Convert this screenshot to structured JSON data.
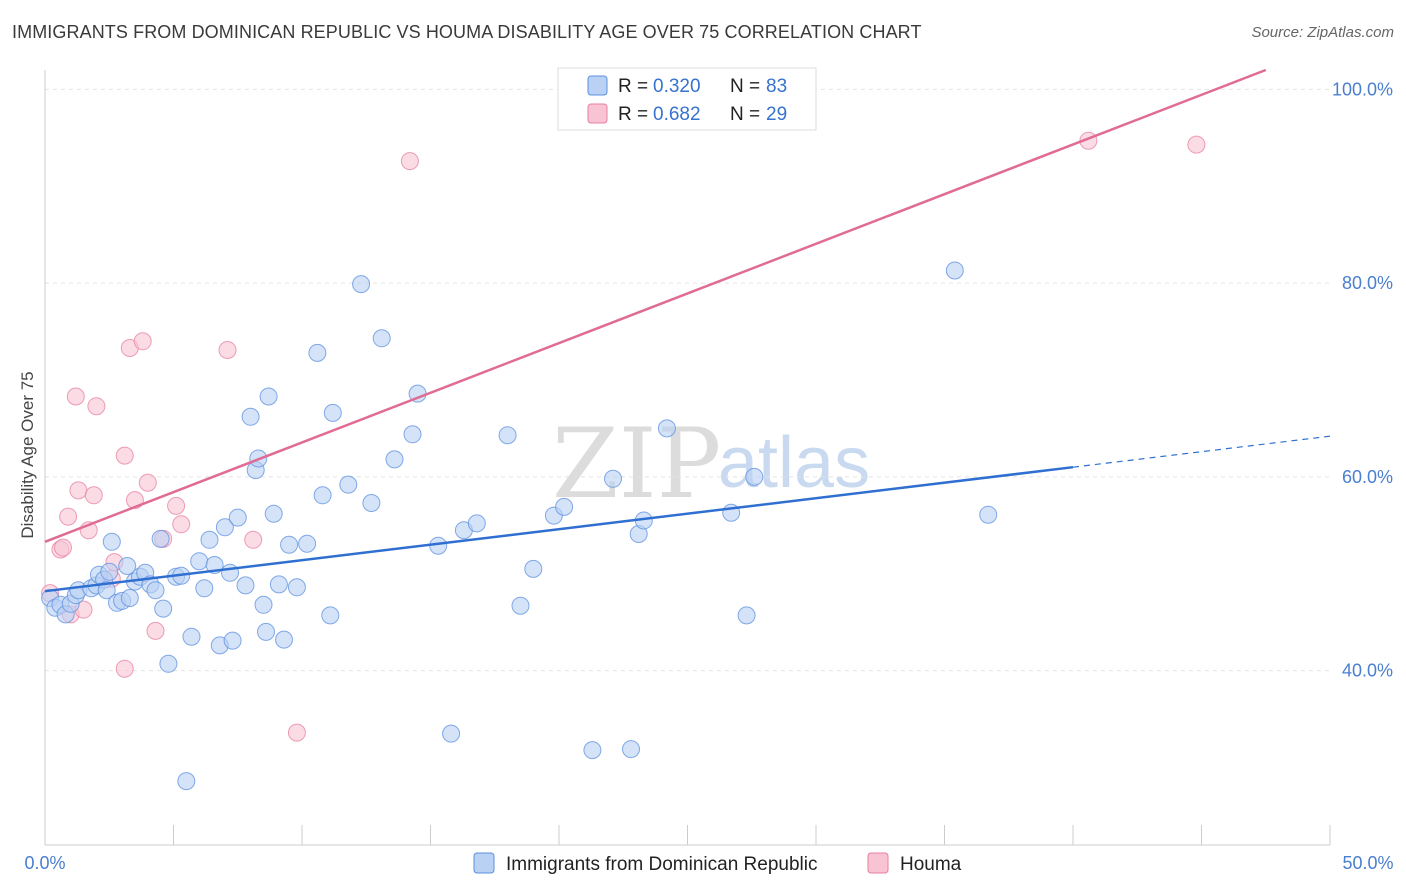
{
  "chart_data": {
    "type": "scatter",
    "title": "IMMIGRANTS FROM DOMINICAN REPUBLIC VS HOUMA DISABILITY AGE OVER 75 CORRELATION CHART",
    "source": "Source: ZipAtlas.com",
    "ylabel": "Disability Age Over 75",
    "xlim": [
      0,
      50
    ],
    "ylim": [
      22,
      102
    ],
    "x_tick_labels": [
      "0.0%",
      "50.0%"
    ],
    "y_ticks": [
      40,
      60,
      80,
      100
    ],
    "y_tick_labels": [
      "40.0%",
      "60.0%",
      "80.0%",
      "100.0%"
    ],
    "watermark": [
      "ZIP",
      "atlas"
    ],
    "legend": [
      {
        "r_label": "R =",
        "r_value": "0.320",
        "n_label": "N =",
        "n_value": "83"
      },
      {
        "r_label": "R =",
        "r_value": "0.682",
        "n_label": "N =",
        "n_value": "29"
      }
    ],
    "series": [
      {
        "name": "Immigrants from Dominican Republic",
        "color": "#5b8fe0",
        "fill": "#b9d1f3",
        "trend": {
          "x0": 0,
          "y0": 48.2,
          "x1": 40,
          "y1": 61.0,
          "dash_x1": 50,
          "dash_y1": 64.2
        },
        "points": [
          [
            0.2,
            47.5
          ],
          [
            0.4,
            46.5
          ],
          [
            0.6,
            46.8
          ],
          [
            0.8,
            45.8
          ],
          [
            1.0,
            46.9
          ],
          [
            1.2,
            47.8
          ],
          [
            1.3,
            48.3
          ],
          [
            1.8,
            48.5
          ],
          [
            2.0,
            48.8
          ],
          [
            2.1,
            49.9
          ],
          [
            2.3,
            49.4
          ],
          [
            2.4,
            48.3
          ],
          [
            2.5,
            50.2
          ],
          [
            2.6,
            53.3
          ],
          [
            2.8,
            47.0
          ],
          [
            3.0,
            47.2
          ],
          [
            3.2,
            50.8
          ],
          [
            3.3,
            47.5
          ],
          [
            3.5,
            49.2
          ],
          [
            3.7,
            49.7
          ],
          [
            3.9,
            50.1
          ],
          [
            4.1,
            48.9
          ],
          [
            4.3,
            48.3
          ],
          [
            4.5,
            53.6
          ],
          [
            4.6,
            46.4
          ],
          [
            4.8,
            40.7
          ],
          [
            5.1,
            49.7
          ],
          [
            5.3,
            49.8
          ],
          [
            5.5,
            28.6
          ],
          [
            5.7,
            43.5
          ],
          [
            6.0,
            51.3
          ],
          [
            6.2,
            48.5
          ],
          [
            6.4,
            53.5
          ],
          [
            6.6,
            50.9
          ],
          [
            6.8,
            42.6
          ],
          [
            7.0,
            54.8
          ],
          [
            7.2,
            50.1
          ],
          [
            7.3,
            43.1
          ],
          [
            7.5,
            55.8
          ],
          [
            7.8,
            48.8
          ],
          [
            8.0,
            66.2
          ],
          [
            8.2,
            60.7
          ],
          [
            8.3,
            61.9
          ],
          [
            8.5,
            46.8
          ],
          [
            8.6,
            44.0
          ],
          [
            8.7,
            68.3
          ],
          [
            8.9,
            56.2
          ],
          [
            9.1,
            48.9
          ],
          [
            9.3,
            43.2
          ],
          [
            9.5,
            53.0
          ],
          [
            9.8,
            48.6
          ],
          [
            10.2,
            53.1
          ],
          [
            10.6,
            72.8
          ],
          [
            10.8,
            58.1
          ],
          [
            11.1,
            45.7
          ],
          [
            11.2,
            66.6
          ],
          [
            11.8,
            59.2
          ],
          [
            12.3,
            79.9
          ],
          [
            12.7,
            57.3
          ],
          [
            13.1,
            74.3
          ],
          [
            13.6,
            61.8
          ],
          [
            14.3,
            64.4
          ],
          [
            14.5,
            68.6
          ],
          [
            15.3,
            52.9
          ],
          [
            15.8,
            33.5
          ],
          [
            16.3,
            54.5
          ],
          [
            16.8,
            55.2
          ],
          [
            18.0,
            64.3
          ],
          [
            18.5,
            46.7
          ],
          [
            19.0,
            50.5
          ],
          [
            19.8,
            56.0
          ],
          [
            20.2,
            56.9
          ],
          [
            21.3,
            31.8
          ],
          [
            22.1,
            59.8
          ],
          [
            22.8,
            31.9
          ],
          [
            23.1,
            54.1
          ],
          [
            23.3,
            55.5
          ],
          [
            24.2,
            65.0
          ],
          [
            26.7,
            56.3
          ],
          [
            27.3,
            45.7
          ],
          [
            27.6,
            60.0
          ],
          [
            35.4,
            81.3
          ],
          [
            36.7,
            56.1
          ]
        ]
      },
      {
        "name": "Houma",
        "color": "#e77fa0",
        "fill": "#f8c4d3",
        "trend": {
          "x0": 0,
          "y0": 53.3,
          "x1": 47.5,
          "y1": 102
        },
        "points": [
          [
            0.2,
            48.0
          ],
          [
            0.6,
            52.5
          ],
          [
            0.7,
            52.7
          ],
          [
            0.9,
            55.9
          ],
          [
            1.0,
            45.8
          ],
          [
            1.2,
            68.3
          ],
          [
            1.3,
            58.6
          ],
          [
            1.5,
            46.3
          ],
          [
            1.7,
            54.5
          ],
          [
            1.9,
            58.1
          ],
          [
            2.0,
            67.3
          ],
          [
            2.6,
            49.5
          ],
          [
            2.7,
            51.2
          ],
          [
            3.1,
            62.2
          ],
          [
            3.1,
            40.2
          ],
          [
            3.3,
            73.3
          ],
          [
            3.5,
            57.6
          ],
          [
            3.8,
            74.0
          ],
          [
            4.0,
            59.4
          ],
          [
            4.3,
            44.1
          ],
          [
            4.6,
            53.6
          ],
          [
            5.1,
            57.0
          ],
          [
            5.3,
            55.1
          ],
          [
            7.1,
            73.1
          ],
          [
            8.1,
            53.5
          ],
          [
            9.8,
            33.6
          ],
          [
            14.2,
            92.6
          ],
          [
            40.6,
            94.7
          ],
          [
            44.8,
            94.3
          ]
        ]
      }
    ]
  }
}
